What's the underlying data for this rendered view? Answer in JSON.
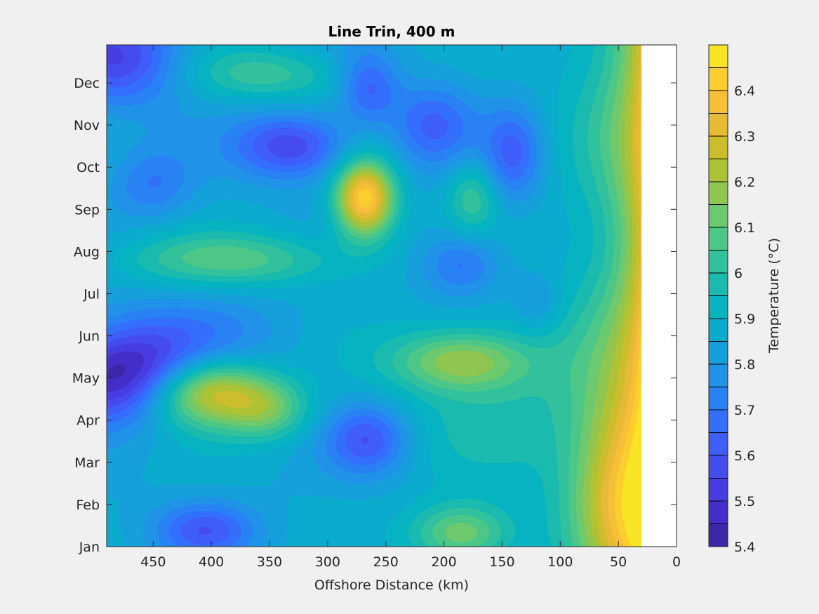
{
  "chart_data": {
    "type": "heatmap",
    "subtype": "filled-contour",
    "title": "Line Trin, 400 m",
    "xlabel": "Offshore Distance (km)",
    "ylabel": "",
    "xlim": [
      0,
      490
    ],
    "x_reversed": true,
    "x_ticks": [
      450,
      400,
      350,
      300,
      250,
      200,
      150,
      100,
      50,
      0
    ],
    "y_tick_labels": [
      "Jan",
      "Feb",
      "Mar",
      "Apr",
      "May",
      "Jun",
      "Jul",
      "Aug",
      "Sep",
      "Oct",
      "Nov",
      "Dec"
    ],
    "ylim_months": [
      0,
      11.9
    ],
    "no_data_below_km": 30,
    "colorbar": {
      "label": "Temperature (°C)",
      "clim": [
        5.4,
        6.5
      ],
      "levels_step": 0.05,
      "ticks": [
        5.4,
        5.5,
        5.6,
        5.7,
        5.8,
        5.9,
        6,
        6.1,
        6.2,
        6.3,
        6.4
      ],
      "colormap": "parula",
      "colors": [
        "#3e26a8",
        "#4530d2",
        "#4743ea",
        "#4258f6",
        "#356efd",
        "#2685f2",
        "#1d98e2",
        "#0ea8d3",
        "#04b3c3",
        "#1cbbad",
        "#39c497",
        "#5dca78",
        "#89c656",
        "#b0c233",
        "#d5bb2a",
        "#f3b93b",
        "#fdc731",
        "#f7e424"
      ]
    },
    "base_temperature": 5.85,
    "features": [
      {
        "name": "cold core nearshore-offshore May",
        "x_km": 475,
        "month": 4.0,
        "amplitude": -0.42,
        "sx_km": 45,
        "sy_months": 0.75
      },
      {
        "name": "cold band south of May",
        "x_km": 420,
        "month": 4.6,
        "amplitude": -0.15,
        "sx_km": 60,
        "sy_months": 0.9
      },
      {
        "name": "cold upper-left corner",
        "x_km": 480,
        "month": 11.6,
        "amplitude": -0.3,
        "sx_km": 40,
        "sy_months": 0.8
      },
      {
        "name": "cold Nov-Oct eddy",
        "x_km": 330,
        "month": 9.5,
        "amplitude": -0.3,
        "sx_km": 35,
        "sy_months": 0.55
      },
      {
        "name": "cold left Oct",
        "x_km": 450,
        "month": 8.6,
        "amplitude": -0.15,
        "sx_km": 25,
        "sy_months": 0.6
      },
      {
        "name": "cold Dec patch",
        "x_km": 265,
        "month": 10.9,
        "amplitude": -0.22,
        "sx_km": 18,
        "sy_months": 0.6
      },
      {
        "name": "cold Nov patch",
        "x_km": 210,
        "month": 10.0,
        "amplitude": -0.2,
        "sx_km": 25,
        "sy_months": 0.7
      },
      {
        "name": "cold Oct patch east",
        "x_km": 140,
        "month": 9.3,
        "amplitude": -0.22,
        "sx_km": 18,
        "sy_months": 0.8
      },
      {
        "name": "cold Aug patch",
        "x_km": 185,
        "month": 6.7,
        "amplitude": -0.2,
        "sx_km": 25,
        "sy_months": 0.55
      },
      {
        "name": "cold Mar patch",
        "x_km": 265,
        "month": 2.55,
        "amplitude": -0.25,
        "sx_km": 25,
        "sy_months": 0.6
      },
      {
        "name": "cold Jan patch",
        "x_km": 405,
        "month": 0.4,
        "amplitude": -0.22,
        "sx_km": 30,
        "sy_months": 0.45
      },
      {
        "name": "cold Jul strip",
        "x_km": 120,
        "month": 5.8,
        "amplitude": -0.1,
        "sx_km": 15,
        "sy_months": 0.5
      },
      {
        "name": "warm Apr core",
        "x_km": 405,
        "month": 3.7,
        "amplitude": 0.55,
        "sx_km": 40,
        "sy_months": 0.6
      },
      {
        "name": "warm Apr tail",
        "x_km": 350,
        "month": 3.2,
        "amplitude": 0.2,
        "sx_km": 25,
        "sy_months": 0.5
      },
      {
        "name": "warm Sep core",
        "x_km": 268,
        "month": 8.25,
        "amplitude": 0.6,
        "sx_km": 18,
        "sy_months": 0.65
      },
      {
        "name": "warm May-Jun core",
        "x_km": 185,
        "month": 4.4,
        "amplitude": 0.3,
        "sx_km": 40,
        "sy_months": 0.5
      },
      {
        "name": "warm Aug band",
        "x_km": 380,
        "month": 6.8,
        "amplitude": 0.22,
        "sx_km": 70,
        "sy_months": 0.45
      },
      {
        "name": "warm Dec band",
        "x_km": 355,
        "month": 11.2,
        "amplitude": 0.18,
        "sx_km": 50,
        "sy_months": 0.45
      },
      {
        "name": "warm Sep east",
        "x_km": 175,
        "month": 8.3,
        "amplitude": 0.18,
        "sx_km": 15,
        "sy_months": 0.6
      },
      {
        "name": "warm Jan patch",
        "x_km": 185,
        "month": 0.3,
        "amplitude": 0.3,
        "sx_km": 30,
        "sy_months": 0.5
      },
      {
        "name": "warm Jan-Mar nearshore",
        "x_km": 50,
        "month": 1.4,
        "amplitude": 0.3,
        "sx_km": 30,
        "sy_months": 1.6
      },
      {
        "name": "warm broad mid-band",
        "x_km": 150,
        "month": 3.5,
        "amplitude": 0.1,
        "sx_km": 80,
        "sy_months": 1.5
      }
    ],
    "coastal_gradient": {
      "edge_km": 30,
      "max_anomaly": 0.55,
      "width_km": 70
    }
  }
}
